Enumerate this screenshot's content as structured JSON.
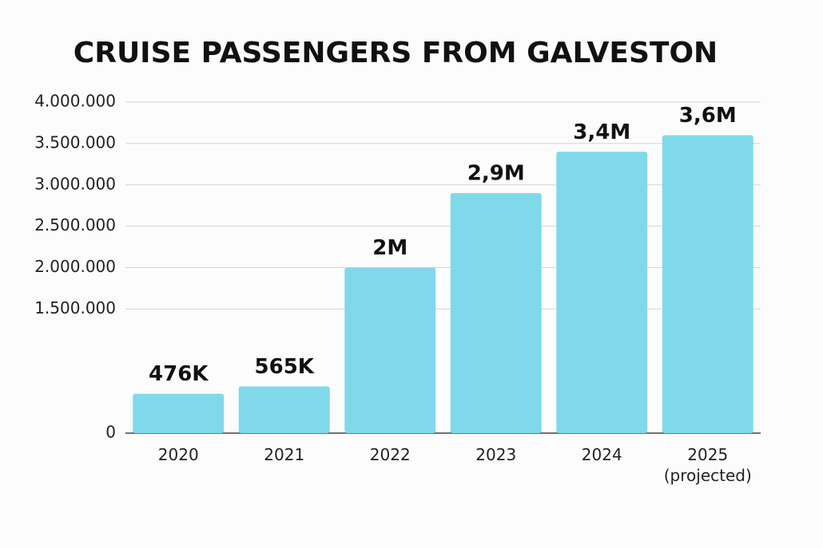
{
  "chart_data": {
    "type": "bar",
    "title": "CRUISE PASSENGERS FROM GALVESTON",
    "categories": [
      "2020",
      "2021",
      "2022",
      "2023",
      "2024",
      "2025 (projected)"
    ],
    "values": [
      476000,
      565000,
      2000000,
      2900000,
      3400000,
      3600000
    ],
    "value_labels": [
      "476K",
      "565K",
      "2M",
      "2,9M",
      "3,4M",
      "3,6M"
    ],
    "color": "#80d9ea",
    "ylim": [
      0,
      4000000
    ],
    "yticks": [
      0,
      {
        "value": 1500000,
        "label": "1.500.000"
      },
      {
        "value": 2000000,
        "label": "2.000.000"
      },
      {
        "value": 2500000,
        "label": "2.500.000"
      },
      {
        "value": 3000000,
        "label": "3.000.000"
      },
      {
        "value": 3500000,
        "label": "3.500.000"
      },
      {
        "value": 4000000,
        "label": "4.000.000"
      }
    ],
    "grid": true
  }
}
